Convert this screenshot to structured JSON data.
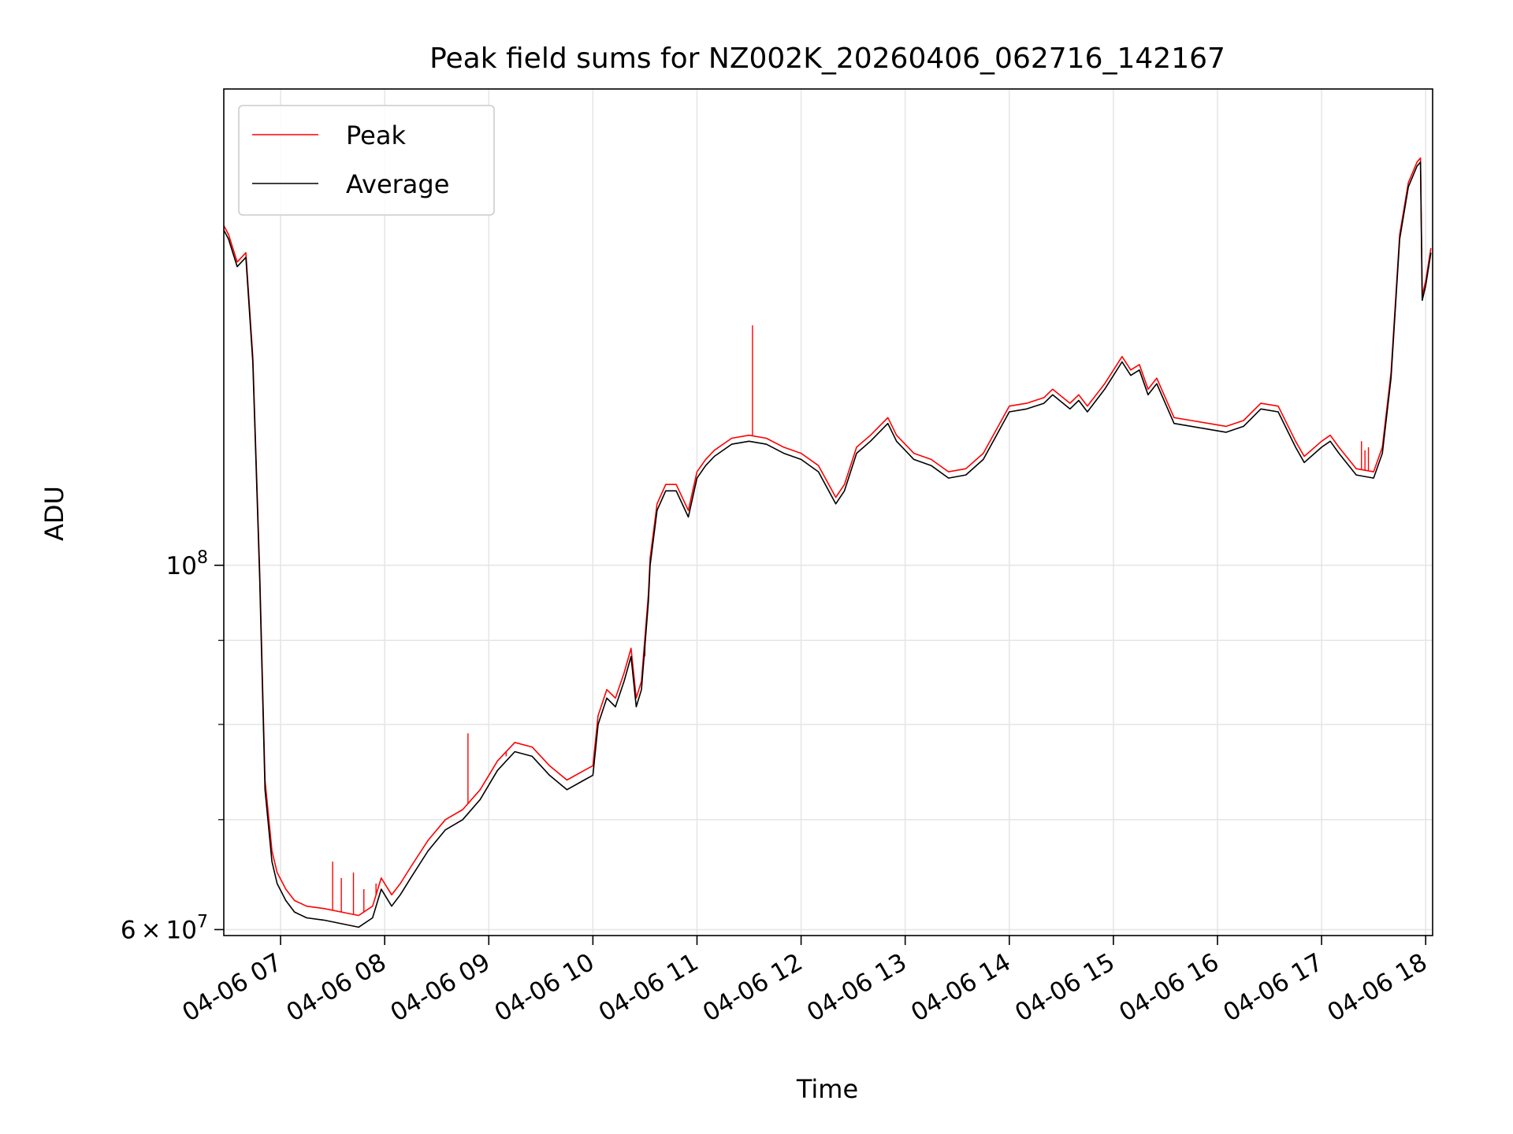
{
  "chart_data": {
    "type": "line",
    "title": "Peak field sums for NZ002K_20260406_062716_142167",
    "xlabel": "Time",
    "ylabel": "ADU",
    "x_type": "datetime",
    "xlim": [
      "2026-04-06T06:27:16",
      "2026-04-06T18:04:00"
    ],
    "x_ticks": [
      {
        "value": "2026-04-06T07:00",
        "label": "04-06 07"
      },
      {
        "value": "2026-04-06T08:00",
        "label": "04-06 08"
      },
      {
        "value": "2026-04-06T09:00",
        "label": "04-06 09"
      },
      {
        "value": "2026-04-06T10:00",
        "label": "04-06 10"
      },
      {
        "value": "2026-04-06T11:00",
        "label": "04-06 11"
      },
      {
        "value": "2026-04-06T12:00",
        "label": "04-06 12"
      },
      {
        "value": "2026-04-06T13:00",
        "label": "04-06 13"
      },
      {
        "value": "2026-04-06T14:00",
        "label": "04-06 14"
      },
      {
        "value": "2026-04-06T15:00",
        "label": "04-06 15"
      },
      {
        "value": "2026-04-06T16:00",
        "label": "04-06 16"
      },
      {
        "value": "2026-04-06T17:00",
        "label": "04-06 17"
      },
      {
        "value": "2026-04-06T18:00",
        "label": "04-06 18"
      }
    ],
    "y_scale": "log",
    "ylim": [
      59500000,
      195000000
    ],
    "y_major_ticks": [
      {
        "value": 60000000,
        "mantissa": "6",
        "base": "10",
        "exp": "7"
      },
      {
        "value": 100000000,
        "mantissa": "",
        "base": "10",
        "exp": "8"
      }
    ],
    "y_minor_ticks": [
      70000000,
      80000000,
      90000000
    ],
    "grid": true,
    "legend": {
      "position": "top-left",
      "entries": [
        "Peak",
        "Average"
      ]
    },
    "series": [
      {
        "name": "Average",
        "color": "#000000",
        "x": [
          "2026-04-06T06:27:16",
          "2026-04-06T06:30",
          "2026-04-06T06:35",
          "2026-04-06T06:40",
          "2026-04-06T06:44",
          "2026-04-06T06:48",
          "2026-04-06T06:51",
          "2026-04-06T06:55",
          "2026-04-06T06:58",
          "2026-04-06T07:03",
          "2026-04-06T07:08",
          "2026-04-06T07:15",
          "2026-04-06T07:25",
          "2026-04-06T07:35",
          "2026-04-06T07:45",
          "2026-04-06T07:53",
          "2026-04-06T07:58",
          "2026-04-06T08:04",
          "2026-04-06T08:09",
          "2026-04-06T08:15",
          "2026-04-06T08:25",
          "2026-04-06T08:35",
          "2026-04-06T08:45",
          "2026-04-06T08:55",
          "2026-04-06T09:05",
          "2026-04-06T09:15",
          "2026-04-06T09:25",
          "2026-04-06T09:35",
          "2026-04-06T09:45",
          "2026-04-06T09:55",
          "2026-04-06T10:00",
          "2026-04-06T10:03",
          "2026-04-06T10:08",
          "2026-04-06T10:13",
          "2026-04-06T10:18",
          "2026-04-06T10:22",
          "2026-04-06T10:25",
          "2026-04-06T10:28",
          "2026-04-06T10:32",
          "2026-04-06T10:33",
          "2026-04-06T10:37",
          "2026-04-06T10:42",
          "2026-04-06T10:48",
          "2026-04-06T10:55",
          "2026-04-06T11:00",
          "2026-04-06T11:05",
          "2026-04-06T11:10",
          "2026-04-06T11:20",
          "2026-04-06T11:30",
          "2026-04-06T11:40",
          "2026-04-06T11:50",
          "2026-04-06T12:00",
          "2026-04-06T12:10",
          "2026-04-06T12:20",
          "2026-04-06T12:25",
          "2026-04-06T12:32",
          "2026-04-06T12:40",
          "2026-04-06T12:50",
          "2026-04-06T12:55",
          "2026-04-06T13:05",
          "2026-04-06T13:15",
          "2026-04-06T13:25",
          "2026-04-06T13:35",
          "2026-04-06T13:45",
          "2026-04-06T14:00",
          "2026-04-06T14:10",
          "2026-04-06T14:20",
          "2026-04-06T14:25",
          "2026-04-06T14:35",
          "2026-04-06T14:40",
          "2026-04-06T14:45",
          "2026-04-06T14:55",
          "2026-04-06T15:05",
          "2026-04-06T15:10",
          "2026-04-06T15:15",
          "2026-04-06T15:20",
          "2026-04-06T15:25",
          "2026-04-06T15:35",
          "2026-04-06T15:45",
          "2026-04-06T15:55",
          "2026-04-06T16:05",
          "2026-04-06T16:15",
          "2026-04-06T16:25",
          "2026-04-06T16:35",
          "2026-04-06T16:45",
          "2026-04-06T16:50",
          "2026-04-06T17:00",
          "2026-04-06T17:05",
          "2026-04-06T17:10",
          "2026-04-06T17:20",
          "2026-04-06T17:30",
          "2026-04-06T17:35",
          "2026-04-06T17:40",
          "2026-04-06T17:45",
          "2026-04-06T17:50",
          "2026-04-06T17:55",
          "2026-04-06T17:57",
          "2026-04-06T17:58",
          "2026-04-06T18:00",
          "2026-04-06T18:03"
        ],
        "values": [
          160000000,
          158000000,
          152000000,
          154000000,
          133000000,
          98000000,
          73000000,
          66000000,
          64000000,
          62500000,
          61500000,
          61000000,
          60800000,
          60500000,
          60200000,
          61000000,
          63500000,
          62000000,
          63000000,
          64500000,
          67000000,
          69000000,
          70000000,
          72000000,
          75000000,
          77000000,
          76500000,
          74500000,
          73000000,
          74000000,
          74500000,
          80000000,
          83000000,
          82000000,
          85000000,
          88000000,
          82000000,
          84000000,
          95000000,
          100000000,
          108000000,
          111000000,
          111000000,
          107000000,
          113000000,
          115000000,
          116500000,
          118500000,
          119000000,
          118500000,
          117000000,
          116000000,
          114000000,
          109000000,
          111000000,
          117000000,
          119000000,
          122000000,
          119000000,
          116000000,
          115000000,
          113000000,
          113500000,
          116000000,
          124000000,
          124500000,
          125500000,
          127000000,
          124500000,
          126000000,
          124000000,
          128000000,
          133000000,
          130500000,
          131500000,
          127000000,
          129000000,
          122000000,
          121500000,
          121000000,
          120500000,
          121500000,
          124500000,
          124000000,
          118000000,
          115500000,
          118000000,
          119000000,
          117000000,
          113500000,
          113000000,
          117000000,
          130000000,
          158000000,
          170000000,
          175000000,
          176000000,
          145000000,
          148000000,
          155000000
        ]
      },
      {
        "name": "Peak",
        "color": "#ff0000",
        "x": [
          "2026-04-06T06:27:16",
          "2026-04-06T06:30",
          "2026-04-06T06:35",
          "2026-04-06T06:40",
          "2026-04-06T06:44",
          "2026-04-06T06:48",
          "2026-04-06T06:51",
          "2026-04-06T06:55",
          "2026-04-06T06:58",
          "2026-04-06T07:03",
          "2026-04-06T07:08",
          "2026-04-06T07:15",
          "2026-04-06T07:25",
          "2026-04-06T07:35",
          "2026-04-06T07:45",
          "2026-04-06T07:53",
          "2026-04-06T07:58",
          "2026-04-06T08:04",
          "2026-04-06T08:09",
          "2026-04-06T08:15",
          "2026-04-06T08:25",
          "2026-04-06T08:35",
          "2026-04-06T08:45",
          "2026-04-06T08:55",
          "2026-04-06T09:05",
          "2026-04-06T09:15",
          "2026-04-06T09:25",
          "2026-04-06T09:35",
          "2026-04-06T09:45",
          "2026-04-06T09:55",
          "2026-04-06T10:00",
          "2026-04-06T10:03",
          "2026-04-06T10:08",
          "2026-04-06T10:13",
          "2026-04-06T10:18",
          "2026-04-06T10:22",
          "2026-04-06T10:25",
          "2026-04-06T10:28",
          "2026-04-06T10:32",
          "2026-04-06T10:33",
          "2026-04-06T10:37",
          "2026-04-06T10:42",
          "2026-04-06T10:48",
          "2026-04-06T10:55",
          "2026-04-06T11:00",
          "2026-04-06T11:05",
          "2026-04-06T11:10",
          "2026-04-06T11:20",
          "2026-04-06T11:30",
          "2026-04-06T11:40",
          "2026-04-06T11:50",
          "2026-04-06T12:00",
          "2026-04-06T12:10",
          "2026-04-06T12:20",
          "2026-04-06T12:25",
          "2026-04-06T12:32",
          "2026-04-06T12:40",
          "2026-04-06T12:50",
          "2026-04-06T12:55",
          "2026-04-06T13:05",
          "2026-04-06T13:15",
          "2026-04-06T13:25",
          "2026-04-06T13:35",
          "2026-04-06T13:45",
          "2026-04-06T14:00",
          "2026-04-06T14:10",
          "2026-04-06T14:20",
          "2026-04-06T14:25",
          "2026-04-06T14:35",
          "2026-04-06T14:40",
          "2026-04-06T14:45",
          "2026-04-06T14:55",
          "2026-04-06T15:05",
          "2026-04-06T15:10",
          "2026-04-06T15:15",
          "2026-04-06T15:20",
          "2026-04-06T15:25",
          "2026-04-06T15:35",
          "2026-04-06T15:45",
          "2026-04-06T15:55",
          "2026-04-06T16:05",
          "2026-04-06T16:15",
          "2026-04-06T16:25",
          "2026-04-06T16:35",
          "2026-04-06T16:45",
          "2026-04-06T16:50",
          "2026-04-06T17:00",
          "2026-04-06T17:05",
          "2026-04-06T17:10",
          "2026-04-06T17:20",
          "2026-04-06T17:30",
          "2026-04-06T17:35",
          "2026-04-06T17:40",
          "2026-04-06T17:45",
          "2026-04-06T17:50",
          "2026-04-06T17:55",
          "2026-04-06T17:57",
          "2026-04-06T17:58",
          "2026-04-06T18:00",
          "2026-04-06T18:03"
        ],
        "values": [
          161000000,
          159000000,
          153000000,
          155000000,
          134000000,
          99000000,
          74000000,
          67000000,
          65000000,
          63500000,
          62500000,
          62000000,
          61800000,
          61500000,
          61200000,
          62000000,
          64500000,
          63000000,
          64000000,
          65500000,
          68000000,
          70000000,
          71000000,
          73000000,
          76000000,
          78000000,
          77500000,
          75500000,
          74000000,
          75000000,
          75500000,
          81000000,
          84000000,
          83000000,
          86000000,
          89000000,
          83000000,
          85000000,
          96000000,
          101000000,
          109000000,
          112000000,
          112000000,
          108000000,
          114000000,
          116000000,
          117500000,
          119500000,
          120000000,
          119500000,
          118000000,
          117000000,
          115000000,
          110000000,
          112000000,
          118000000,
          120000000,
          123000000,
          120000000,
          117000000,
          116000000,
          114000000,
          114500000,
          117000000,
          125000000,
          125500000,
          126500000,
          128000000,
          125500000,
          127000000,
          125000000,
          129000000,
          134000000,
          131500000,
          132500000,
          128000000,
          130000000,
          123000000,
          122500000,
          122000000,
          121500000,
          122500000,
          125500000,
          125000000,
          119000000,
          116500000,
          119000000,
          120000000,
          118000000,
          114500000,
          114000000,
          118000000,
          131000000,
          159000000,
          171000000,
          176000000,
          177000000,
          146000000,
          149000000,
          156000000
        ],
        "spikes": [
          {
            "x": "2026-04-06T07:30",
            "value": 66000000
          },
          {
            "x": "2026-04-06T07:35",
            "value": 64500000
          },
          {
            "x": "2026-04-06T07:42",
            "value": 65000000
          },
          {
            "x": "2026-04-06T07:48",
            "value": 63500000
          },
          {
            "x": "2026-04-06T07:55",
            "value": 64000000
          },
          {
            "x": "2026-04-06T08:48",
            "value": 79000000
          },
          {
            "x": "2026-04-06T09:10",
            "value": 76500000
          },
          {
            "x": "2026-04-06T10:30",
            "value": 88000000
          },
          {
            "x": "2026-04-06T11:32",
            "value": 140000000
          },
          {
            "x": "2026-04-06T17:23",
            "value": 119000000
          },
          {
            "x": "2026-04-06T17:25",
            "value": 117500000
          },
          {
            "x": "2026-04-06T17:27",
            "value": 118000000
          }
        ]
      }
    ]
  }
}
